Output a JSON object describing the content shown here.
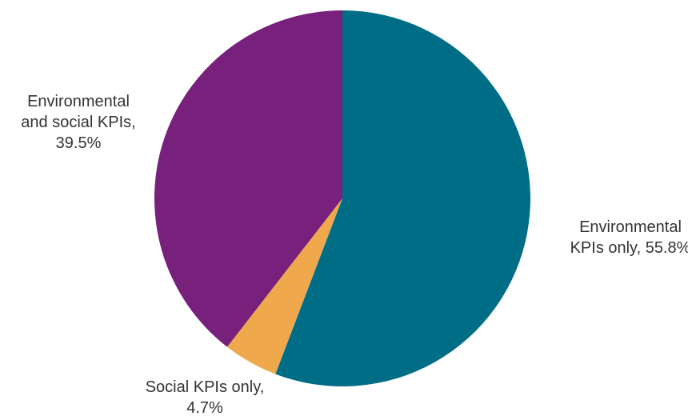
{
  "chart_data": {
    "type": "pie",
    "title": "",
    "slices": [
      {
        "label_lines": [
          "Environmental",
          "KPIs only, 55.8%"
        ],
        "category": "Environmental KPIs only",
        "value": 55.8,
        "color": "#006d87"
      },
      {
        "label_lines": [
          "Social KPIs only,",
          "4.7%"
        ],
        "category": "Social KPIs only",
        "value": 4.7,
        "color": "#f0a84d"
      },
      {
        "label_lines": [
          "Environmental",
          "and social KPIs,",
          "39.5%"
        ],
        "category": "Environmental and social KPIs",
        "value": 39.5,
        "color": "#77207c"
      }
    ],
    "start": "12 o'clock",
    "direction": "clockwise"
  }
}
